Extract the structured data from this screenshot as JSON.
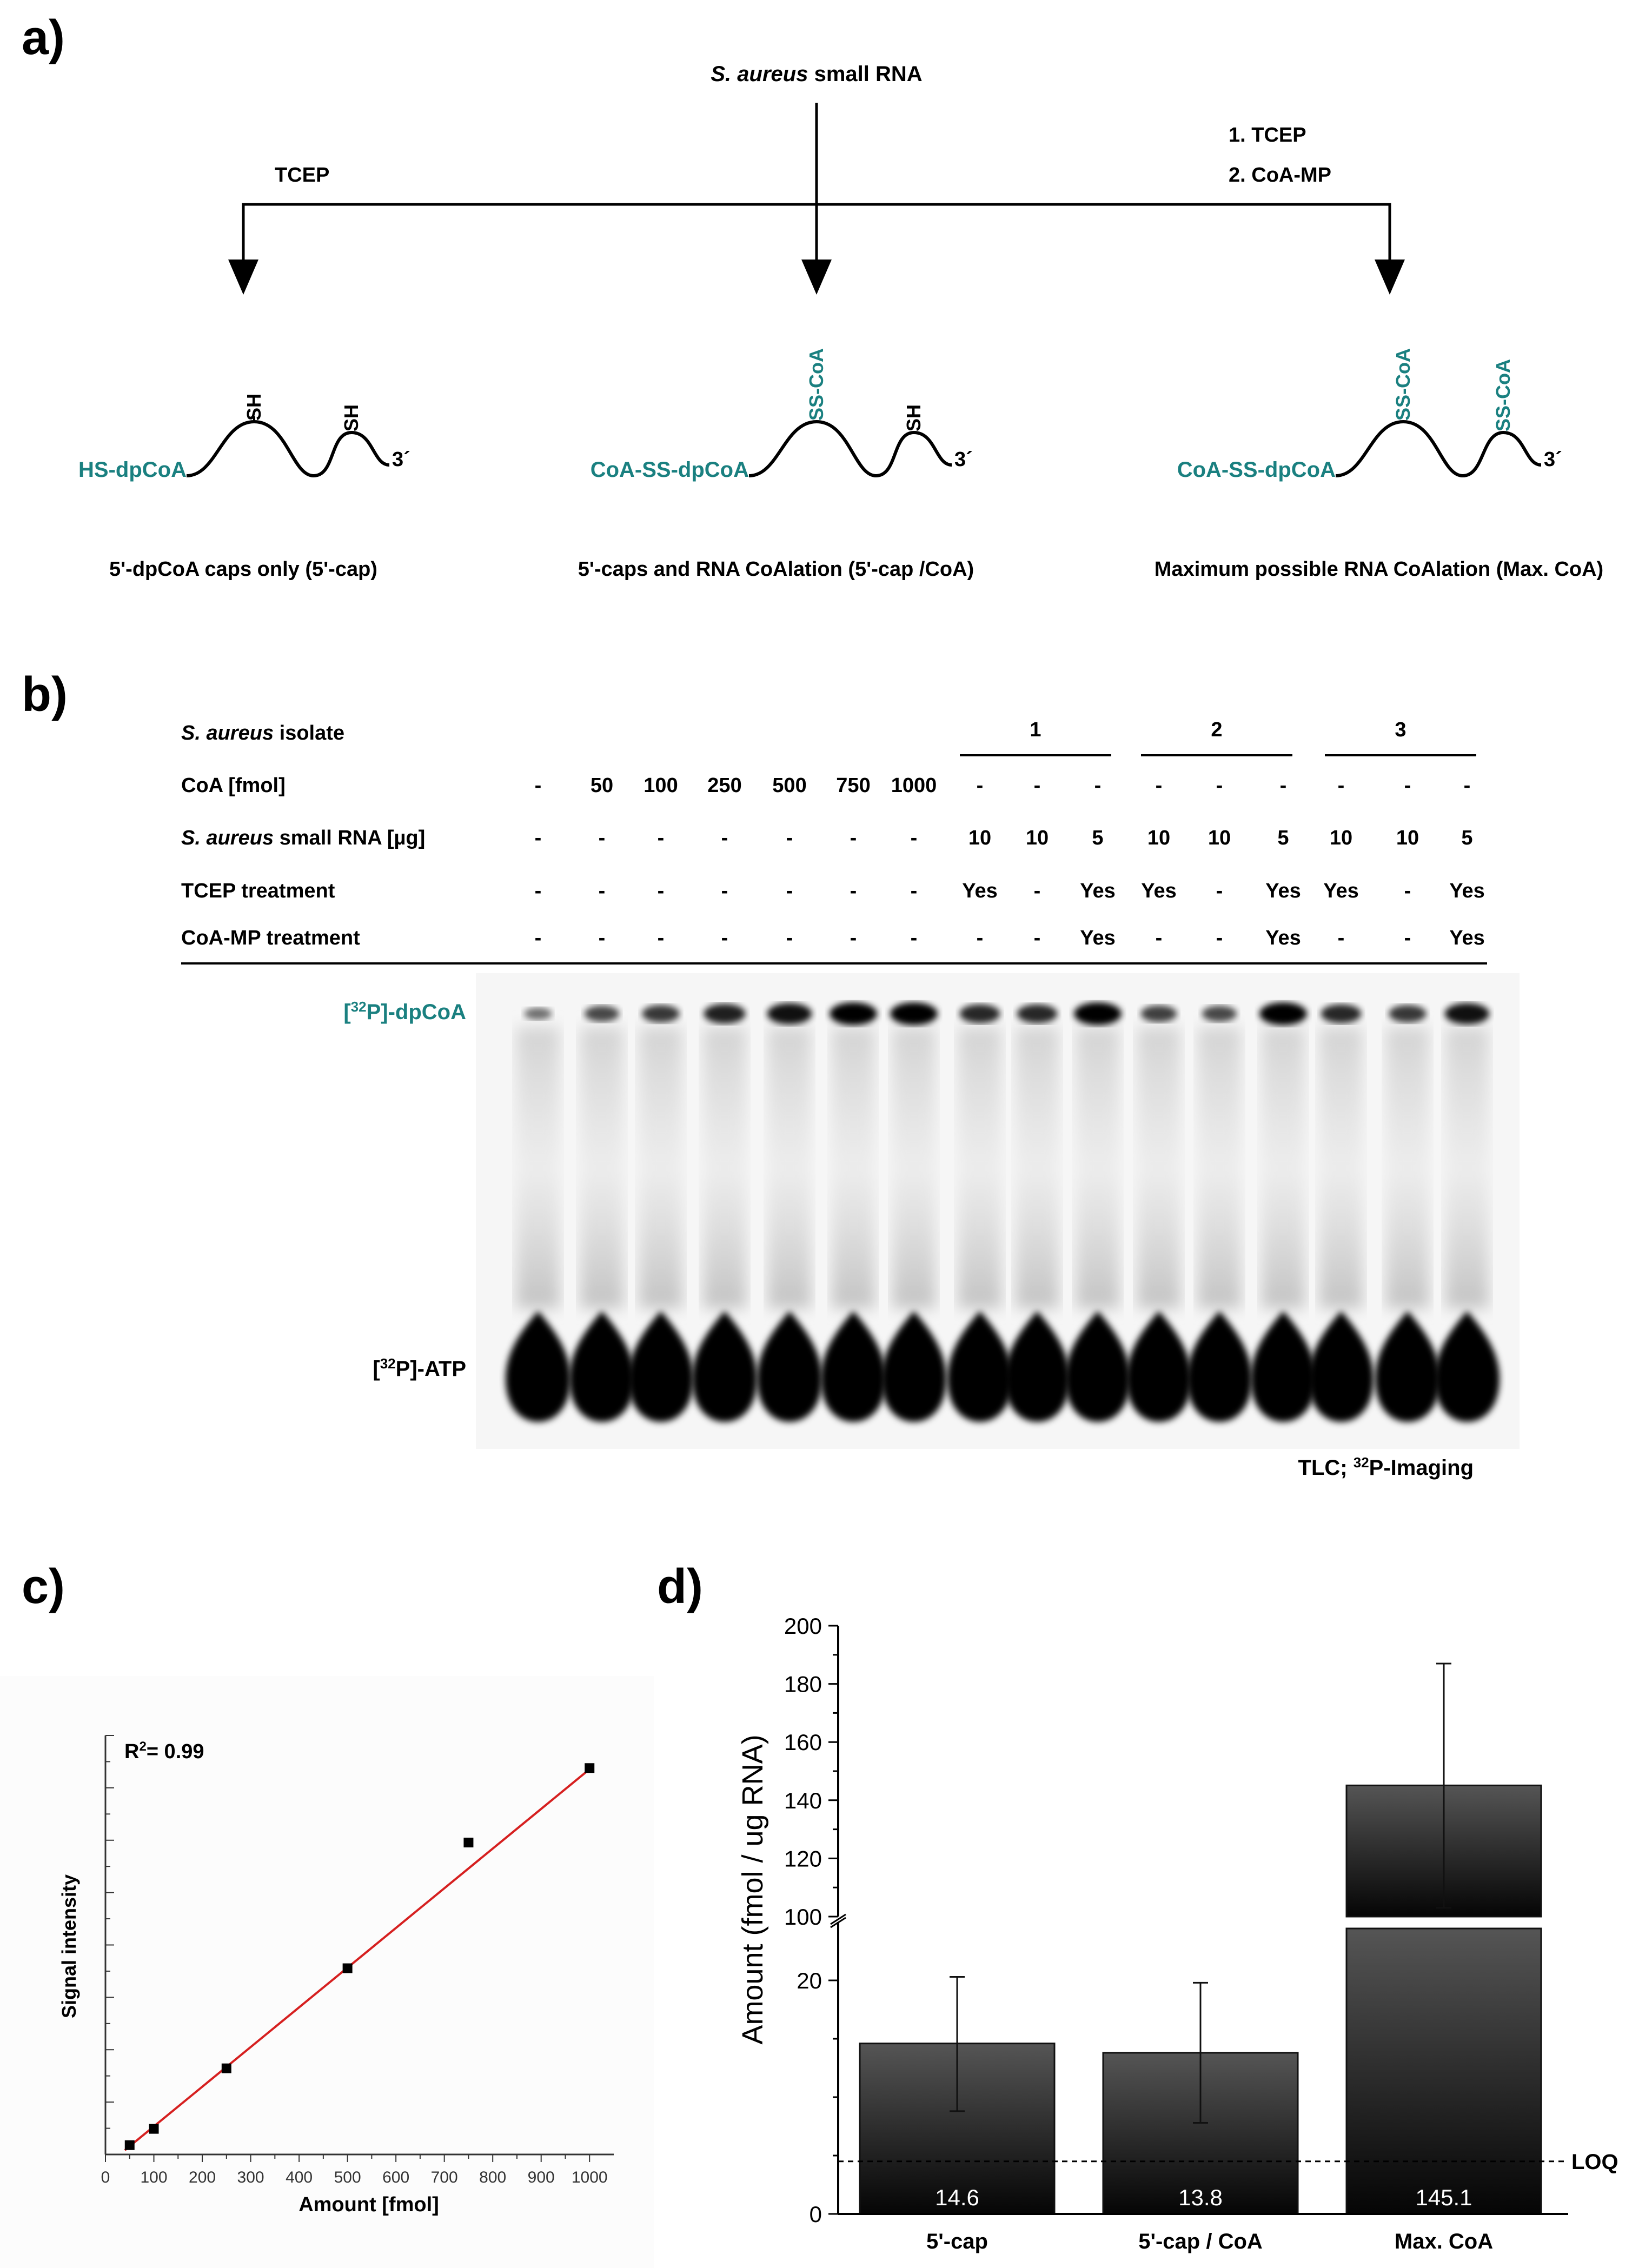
{
  "panel_a": {
    "label": "a)",
    "source": {
      "italic": "S. aureus",
      "rest": " small RNA"
    },
    "left_treatment": "TCEP",
    "right_treatment_1": "1. TCEP",
    "right_treatment_2": "2. CoA-MP",
    "strand_left": {
      "cap": "HS-dpCoA",
      "mod1": "SH",
      "mod2": "SH",
      "end": "3´",
      "caption": "5'-dpCoA caps only (5'-cap)"
    },
    "strand_mid": {
      "cap": "CoA-SS-dpCoA",
      "mod1": "SS-CoA",
      "mod2": "SH",
      "end": "3´",
      "caption": "5'-caps and RNA CoAlation (5'-cap /CoA)"
    },
    "strand_right": {
      "cap": "CoA-SS-dpCoA",
      "mod1": "SS-CoA",
      "mod2": "SS-CoA",
      "end": "3´",
      "caption": "Maximum possible RNA CoAlation (Max. CoA)"
    }
  },
  "panel_b": {
    "label": "b)",
    "row_labels": {
      "isolate": {
        "italic": "S. aureus",
        "rest": " isolate"
      },
      "coa": "CoA [fmol]",
      "rna": {
        "italic": "S. aureus",
        "rest": " small RNA [µg]"
      },
      "tcep": "TCEP treatment",
      "coamp": "CoA-MP treatment"
    },
    "isolates": [
      "1",
      "2",
      "3"
    ],
    "coa_values": [
      "-",
      "50",
      "100",
      "250",
      "500",
      "750",
      "1000",
      "-",
      "-",
      "-",
      "-",
      "-",
      "-",
      "-",
      "-",
      "-"
    ],
    "rna_values": [
      "-",
      "-",
      "-",
      "-",
      "-",
      "-",
      "-",
      "10",
      "10",
      "5",
      "10",
      "10",
      "5",
      "10",
      "10",
      "5"
    ],
    "tcep_values": [
      "-",
      "-",
      "-",
      "-",
      "-",
      "-",
      "-",
      "Yes",
      "-",
      "Yes",
      "Yes",
      "-",
      "Yes",
      "Yes",
      "-",
      "Yes"
    ],
    "coamp_values": [
      "-",
      "-",
      "-",
      "-",
      "-",
      "-",
      "-",
      "-",
      "-",
      "Yes",
      "-",
      "-",
      "Yes",
      "-",
      "-",
      "Yes"
    ],
    "dpcoa_band_strength": [
      0.3,
      0.55,
      0.65,
      0.8,
      0.9,
      1.0,
      1.0,
      0.75,
      0.75,
      1.0,
      0.6,
      0.55,
      1.0,
      0.75,
      0.65,
      0.9
    ],
    "band_dpcoa_label": {
      "pre": "[",
      "sup": "32",
      "post": "P]-dpCoA"
    },
    "band_atp_label": {
      "pre": "[",
      "sup": "32",
      "post": "P]-ATP"
    },
    "method": {
      "pre": "TLC; ",
      "sup": "32",
      "post": "P-Imaging"
    }
  },
  "panel_c": {
    "label": "c)",
    "chart_data": {
      "type": "scatter",
      "xlabel": "Amount [fmol]",
      "ylabel": "Signal intensity",
      "annotation": "R²= 0.99",
      "r2_pre": "R",
      "r2_sup": "2",
      "r2_post": "= 0.99",
      "x": [
        50,
        100,
        250,
        500,
        750,
        1000
      ],
      "y": [
        4,
        11,
        37,
        80,
        134,
        166
      ],
      "xlim": [
        0,
        1050
      ],
      "ylim": [
        0,
        180
      ],
      "xticks": [
        "0",
        "100",
        "200",
        "300",
        "400",
        "500",
        "600",
        "700",
        "800",
        "900",
        "1000"
      ],
      "fit": {
        "slope": 0.1705,
        "intercept": -5.0,
        "color": "#d62020"
      }
    }
  },
  "panel_d": {
    "label": "d)",
    "chart_data": {
      "type": "bar",
      "categories": [
        "5'-cap",
        "5'-cap / CoA",
        "Max. CoA"
      ],
      "values": [
        14.6,
        13.8,
        145.1
      ],
      "value_labels": [
        "14.6",
        "13.8",
        "145.1"
      ],
      "error_low": [
        8.8,
        7.8,
        103
      ],
      "error_high": [
        20.3,
        19.8,
        187
      ],
      "ylabel": "Amount (fmol / ug RNA)",
      "lower_ylim": [
        0,
        25
      ],
      "lower_ticks": [
        "0",
        "20"
      ],
      "upper_ylim": [
        100,
        200
      ],
      "upper_ticks": [
        "100",
        "120",
        "140",
        "160",
        "180",
        "200"
      ],
      "loq_value": 4.5,
      "loq_label": "LOQ"
    }
  }
}
